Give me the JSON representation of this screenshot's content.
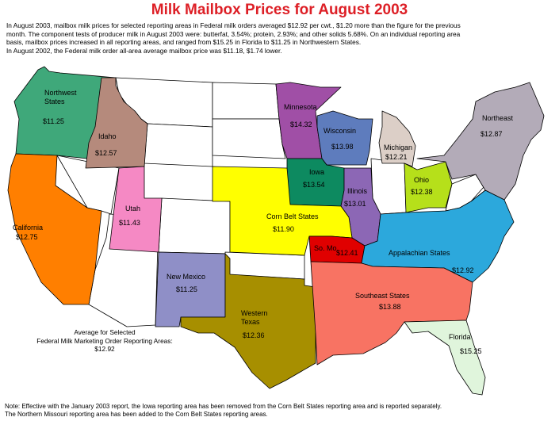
{
  "title": "Milk Mailbox Prices for August 2003",
  "intro": {
    "line1": "In August 2003, mailbox milk prices for selected reporting areas in Federal milk orders averaged $12.92 per cwt., $1.20 more than the figure for the previous",
    "line2": "month.  The component tests of producer milk in August 2003 were: butterfat, 3.54%; protein, 2.93%; and other solids 5.68%. On an individual reporting area",
    "line3": "basis, mailbox prices increased in all reporting areas, and ranged from $15.25 in Florida to $11.25 in Northwestern States.",
    "line4": "In August 2002, the Federal milk order all-area average mailbox price was $11.18, $1.74 lower."
  },
  "regions": {
    "northwest": {
      "name": "Northwest\nStates",
      "price": "$11.25",
      "color": "#3fa87a"
    },
    "idaho": {
      "name": "Idaho",
      "price": "$12.57",
      "color": "#b58a7c"
    },
    "california": {
      "name": "California",
      "price": "$12.75",
      "color": "#ff7f00"
    },
    "utah": {
      "name": "Utah",
      "price": "$11.43",
      "color": "#f589c4"
    },
    "minnesota": {
      "name": "Minnesota",
      "price": "$14.32",
      "color": "#a04fa6"
    },
    "wisconsin": {
      "name": "Wisconsin",
      "price": "$13.98",
      "color": "#5e7cbd"
    },
    "michigan": {
      "name": "Michigan",
      "price": "$12.21",
      "color": "#dccfc7"
    },
    "iowa": {
      "name": "Iowa",
      "price": "$13.54",
      "color": "#0d8a60"
    },
    "illinois": {
      "name": "Illinois",
      "price": "$13.01",
      "color": "#8c67b5"
    },
    "ohio": {
      "name": "Ohio",
      "price": "$12.38",
      "color": "#b6e01a"
    },
    "northeast": {
      "name": "Northeast",
      "price": "$12.87",
      "color": "#b3abb8"
    },
    "cornbelt": {
      "name": "Corn Belt States",
      "price": "$11.90",
      "color": "#ffff00"
    },
    "somo": {
      "name": "So. Mo.",
      "price": "$12.41",
      "color": "#e00000"
    },
    "appalachian": {
      "name": "Appalachian States",
      "price": "$12.92",
      "color": "#2ca8dc"
    },
    "newmexico": {
      "name": "New Mexico",
      "price": "$11.25",
      "color": "#8f8fc7"
    },
    "westtexas": {
      "name": "Western\nTexas",
      "price": "$12.36",
      "color": "#a78f00"
    },
    "southeast": {
      "name": "Southeast States",
      "price": "$13.88",
      "color": "#f87363"
    },
    "florida": {
      "name": "Florida",
      "price": "$15.25",
      "color": "#e0f5dc"
    }
  },
  "average": {
    "line1": "Average for Selected",
    "line2": "Federal Milk Marketing Order Reporting Areas:",
    "price": "$12.92"
  },
  "note": {
    "line1": "Note: Effective with the January 2003 report, the Iowa reporting area has been removed from the Corn Belt States reporting area and is reported separately.",
    "line2": "The Northern Missouri reporting area has been added to the Corn Belt States reporting areas."
  }
}
